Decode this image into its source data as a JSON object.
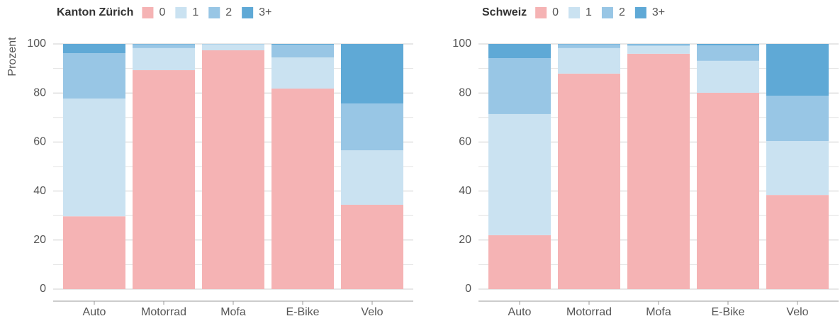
{
  "chart_data": [
    {
      "type": "bar",
      "stacked": true,
      "title": "Kanton Zürich",
      "ylabel": "Prozent",
      "categories": [
        "Auto",
        "Motorrad",
        "Mofa",
        "E-Bike",
        "Velo"
      ],
      "series": [
        {
          "name": "0",
          "color": "#f5b3b4",
          "values": [
            29.7,
            89.3,
            97.4,
            81.8,
            34.4
          ]
        },
        {
          "name": "1",
          "color": "#cae2f1",
          "values": [
            48.0,
            9.0,
            2.4,
            12.7,
            22.2
          ]
        },
        {
          "name": "2",
          "color": "#98c6e5",
          "values": [
            18.5,
            1.5,
            0.2,
            5.2,
            19.1
          ]
        },
        {
          "name": "3+",
          "color": "#5fa9d6",
          "values": [
            3.8,
            0.2,
            0,
            0.3,
            24.3
          ]
        }
      ],
      "ylim": [
        0,
        100
      ],
      "yticks": [
        0,
        20,
        40,
        60,
        80,
        100
      ],
      "yminor": [
        10,
        30,
        50,
        70,
        90
      ],
      "grid": true
    },
    {
      "type": "bar",
      "stacked": true,
      "title": "Schweiz",
      "categories": [
        "Auto",
        "Motorrad",
        "Mofa",
        "E-Bike",
        "Velo"
      ],
      "series": [
        {
          "name": "0",
          "color": "#f5b3b4",
          "values": [
            22.0,
            87.9,
            96.0,
            80.1,
            38.4
          ]
        },
        {
          "name": "1",
          "color": "#cae2f1",
          "values": [
            49.4,
            10.4,
            3.2,
            13.0,
            22.0
          ]
        },
        {
          "name": "2",
          "color": "#98c6e5",
          "values": [
            22.8,
            1.5,
            0.6,
            6.3,
            18.5
          ]
        },
        {
          "name": "3+",
          "color": "#5fa9d6",
          "values": [
            5.8,
            0.2,
            0.2,
            0.6,
            21.1
          ]
        }
      ],
      "ylim": [
        0,
        100
      ],
      "yticks": [
        0,
        20,
        40,
        60,
        80,
        100
      ],
      "yminor": [
        10,
        30,
        50,
        70,
        90
      ],
      "grid": true
    }
  ]
}
